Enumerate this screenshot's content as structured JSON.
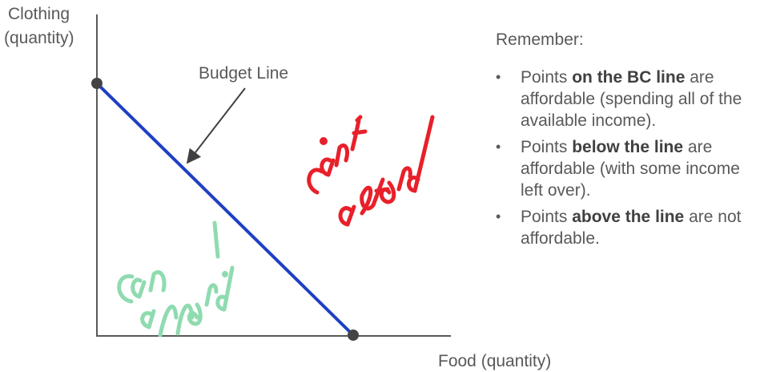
{
  "diagram": {
    "y_axis_label_line1": "Clothing",
    "y_axis_label_line2": "(quantity)",
    "x_axis_label": "Food (quantity)",
    "budget_line_label": "Budget Line",
    "handwritten_note_affordable": "can afford.",
    "handwritten_note_unaffordable": "can't afford",
    "colors": {
      "budget_line": "#1f3fc4",
      "axis": "#595959",
      "endpoint": "#444444",
      "affordable_ink": "#8fdbb0",
      "unaffordable_ink": "#e8202a"
    }
  },
  "notes": {
    "heading": "Remember:",
    "items": [
      {
        "before": "Points ",
        "strong": "on the BC line",
        "after": " are affordable (spending all of the available income)."
      },
      {
        "before": "Points ",
        "strong": "below the line",
        "after": " are affordable (with some income left over)."
      },
      {
        "before": "Points ",
        "strong": "above the line",
        "after": " are not affordable."
      }
    ],
    "bullet_glyph": "•"
  }
}
